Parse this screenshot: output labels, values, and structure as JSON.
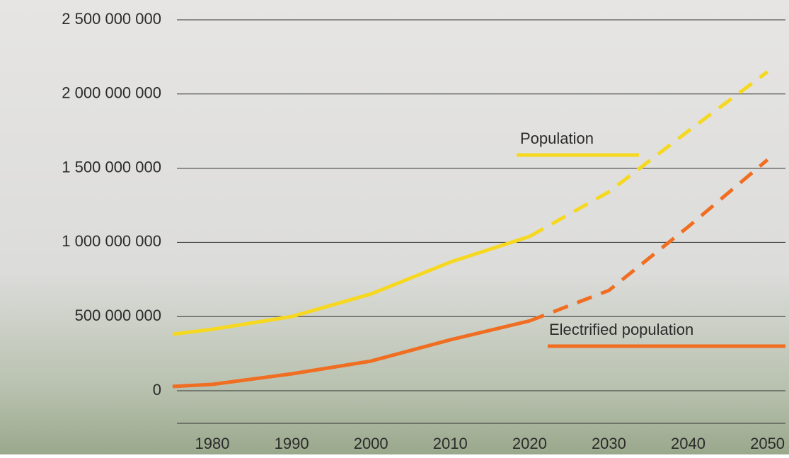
{
  "chart_data": {
    "type": "line",
    "x": [
      1975,
      1980,
      1990,
      2000,
      2010,
      2020,
      2030,
      2040,
      2050
    ],
    "series": [
      {
        "name": "Population",
        "color": "#f6d820",
        "dashed_from": 2020,
        "values": [
          381000000,
          414000000,
          500000000,
          652000000,
          867000000,
          1040000000,
          1340000000,
          1750000000,
          2150000000
        ]
      },
      {
        "name": "Electrified population",
        "color": "#f06e22",
        "dashed_from": 2020,
        "values": [
          29000000,
          43000000,
          114000000,
          200000000,
          343000000,
          471000000,
          676000000,
          1105000000,
          1557000000
        ]
      }
    ],
    "xlim": [
      1975,
      2052
    ],
    "xticks": [
      1980,
      1990,
      2000,
      2010,
      2020,
      2030,
      2040,
      2050
    ],
    "ylim": [
      0,
      2500000000
    ],
    "yticks": [
      0,
      {
        "value": 500000000,
        "label": "500 000 000"
      },
      {
        "value": 1000000000,
        "label": "1 000 000 000"
      },
      {
        "value": 1500000000,
        "label": "1 500 000 000"
      },
      {
        "value": 2000000000,
        "label": "2 000 000 000"
      },
      {
        "value": 2500000000,
        "label": "2 500 000 000"
      }
    ],
    "grid": true
  }
}
